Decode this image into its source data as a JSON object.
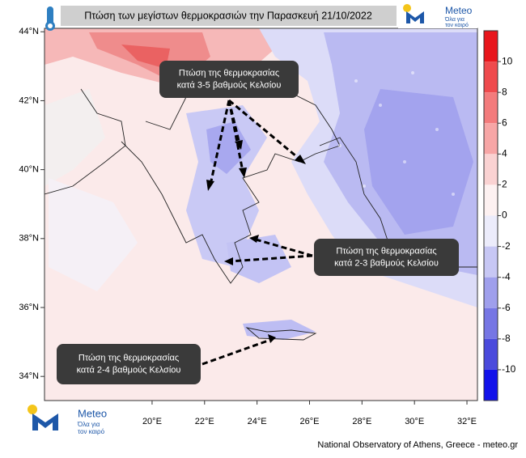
{
  "header": {
    "title": "Πτώση των μεγίστων θερμοκρασιών την Παρασκευή 21/10/2022"
  },
  "logo": {
    "name": "Meteo",
    "tagline": [
      "Όλα για",
      "τον καιρό"
    ]
  },
  "map": {
    "lon_lim": [
      15.9,
      32.4
    ],
    "lat_lim": [
      33.3,
      44.1
    ],
    "lon_ticks": [
      {
        "value": 20,
        "label": "20°E"
      },
      {
        "value": 22,
        "label": "22°E"
      },
      {
        "value": 24,
        "label": "24°E"
      },
      {
        "value": 26,
        "label": "26°E"
      },
      {
        "value": 28,
        "label": "28°E"
      },
      {
        "value": 30,
        "label": "30°E"
      },
      {
        "value": 32,
        "label": "32°E"
      }
    ],
    "lat_ticks": [
      {
        "value": 44,
        "label": "44°N"
      },
      {
        "value": 42,
        "label": "42°N"
      },
      {
        "value": 40,
        "label": "40°N"
      },
      {
        "value": 38,
        "label": "38°N"
      },
      {
        "value": 36,
        "label": "36°N"
      },
      {
        "value": 34,
        "label": "34°N"
      }
    ]
  },
  "colorbar": {
    "lim": [
      -12,
      12
    ],
    "ticks": [
      10,
      8,
      6,
      4,
      2,
      0,
      -2,
      -4,
      -6,
      -8,
      -10
    ],
    "colors": [
      "#e8161c",
      "#ef4a4d",
      "#f37b7c",
      "#f7a6a6",
      "#fad2d2",
      "#fdf1f1",
      "#ececfb",
      "#c7c7f4",
      "#9f9fec",
      "#7676e4",
      "#4a4adc",
      "#1212ea"
    ]
  },
  "annotations": [
    {
      "lines": [
        "Πτώση της θερμοκρασίας",
        "κατά 3-5 βαθμούς Κελσίου"
      ]
    },
    {
      "lines": [
        "Πτώση της θερμοκρασίας",
        "κατά 2-3 βαθμούς Κελσίου"
      ]
    },
    {
      "lines": [
        "Πτώση της θερμοκρασίας",
        "κατά 2-4 βαθμούς Κελσίου"
      ]
    }
  ],
  "footer": "National Observatory of Athens, Greece - meteo.gr"
}
